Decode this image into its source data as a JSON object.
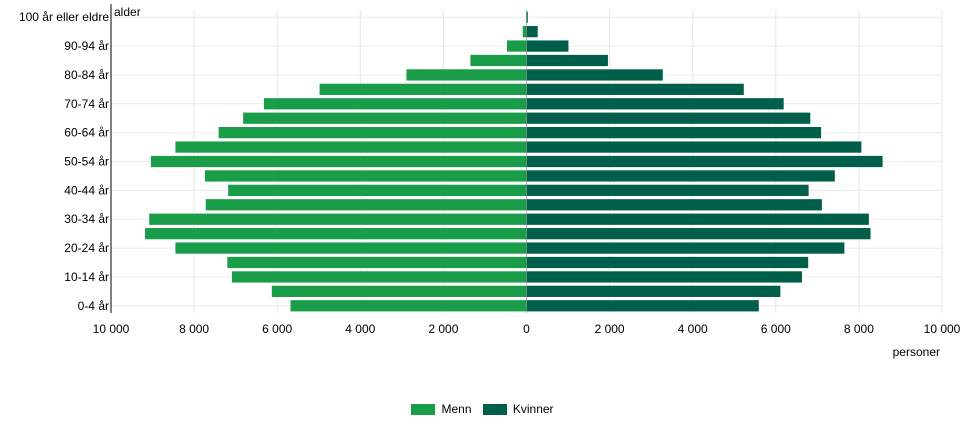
{
  "chart_data": {
    "type": "bar",
    "orientation": "horizontal",
    "subtype": "population-pyramid",
    "ylabel": "alder",
    "xlabel": "personer",
    "xlim": [
      -10000,
      10000
    ],
    "x_ticks": [
      -10000,
      -8000,
      -6000,
      -4000,
      -2000,
      0,
      2000,
      4000,
      6000,
      8000,
      10000
    ],
    "x_tick_labels": [
      "10 000",
      "8 000",
      "6 000",
      "4 000",
      "2 000",
      "0",
      "2 000",
      "4 000",
      "6 000",
      "8 000",
      "10 000"
    ],
    "grid": true,
    "legend_position": "bottom",
    "categories": [
      "0-4 år",
      "5-9 år",
      "10-14 år",
      "15-19 år",
      "20-24 år",
      "25-29 år",
      "30-34 år",
      "35-39 år",
      "40-44 år",
      "45-49 år",
      "50-54 år",
      "55-59 år",
      "60-64 år",
      "65-69 år",
      "70-74 år",
      "75-79 år",
      "80-84 år",
      "85-89 år",
      "90-94 år",
      "95-99 år",
      "100 år eller eldre"
    ],
    "y_tick_labels": [
      "0-4 år",
      "10-14 år",
      "20-24 år",
      "30-34 år",
      "40-44 år",
      "50-54 år",
      "60-64 år",
      "70-74 år",
      "80-84 år",
      "90-94 år",
      "100 år eller eldre"
    ],
    "series": [
      {
        "name": "Menn",
        "color": "#1a9d49",
        "values": [
          5680,
          6130,
          7090,
          7200,
          8450,
          9180,
          9080,
          7720,
          7180,
          7740,
          9040,
          8450,
          7410,
          6820,
          6320,
          4980,
          2890,
          1350,
          470,
          90,
          10
        ]
      },
      {
        "name": "Kvinner",
        "color": "#005f4b",
        "values": [
          5590,
          6110,
          6630,
          6780,
          7650,
          8280,
          8240,
          7110,
          6790,
          7420,
          8570,
          8060,
          7090,
          6830,
          6190,
          5230,
          3280,
          1960,
          1010,
          270,
          30
        ]
      }
    ]
  }
}
